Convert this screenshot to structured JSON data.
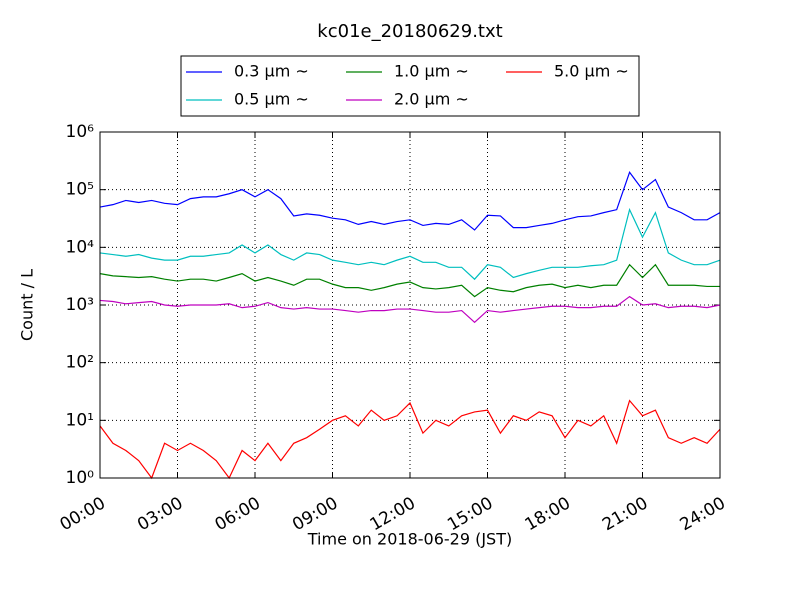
{
  "chart_data": {
    "type": "line",
    "title": "kc01e_20180629.txt",
    "x_label": "Time on 2018-06-29 (JST)",
    "y_label": "Count / L",
    "log_y": true,
    "grid": true,
    "legend": "top-center",
    "x": [
      0,
      0.5,
      1,
      1.5,
      2,
      2.5,
      3,
      3.5,
      4,
      4.5,
      5,
      5.5,
      6,
      6.5,
      7,
      7.5,
      8,
      8.5,
      9,
      9.5,
      10,
      10.5,
      11,
      11.5,
      12,
      12.5,
      13,
      13.5,
      14,
      14.5,
      15,
      15.5,
      16,
      16.5,
      17,
      17.5,
      18,
      18.5,
      19,
      19.5,
      20,
      20.5,
      21,
      21.5,
      22,
      22.5,
      23,
      23.5,
      24
    ],
    "xlim": [
      0,
      24
    ],
    "xticks": [
      {
        "value": 0,
        "label": "00:00"
      },
      {
        "value": 3,
        "label": "03:00"
      },
      {
        "value": 6,
        "label": "06:00"
      },
      {
        "value": 9,
        "label": "09:00"
      },
      {
        "value": 12,
        "label": "12:00"
      },
      {
        "value": 15,
        "label": "15:00"
      },
      {
        "value": 18,
        "label": "18:00"
      },
      {
        "value": 21,
        "label": "21:00"
      },
      {
        "value": 24,
        "label": "24:00"
      }
    ],
    "ylim": [
      1,
      1000000
    ],
    "yticks": [
      {
        "value": 1,
        "label": "10⁰"
      },
      {
        "value": 10,
        "label": "10¹"
      },
      {
        "value": 100,
        "label": "10²"
      },
      {
        "value": 1000,
        "label": "10³"
      },
      {
        "value": 10000,
        "label": "10⁴"
      },
      {
        "value": 100000,
        "label": "10⁵"
      },
      {
        "value": 1000000,
        "label": "10⁶"
      }
    ],
    "series": [
      {
        "name": "0.3 μm ~",
        "color": "#0000ff",
        "values": [
          50000,
          55000,
          65000,
          60000,
          65000,
          58000,
          55000,
          70000,
          75000,
          75000,
          85000,
          100000,
          75000,
          100000,
          70000,
          35000,
          38000,
          36000,
          32000,
          30000,
          25000,
          28000,
          25000,
          28000,
          30000,
          24000,
          26000,
          25000,
          30000,
          20000,
          36000,
          35000,
          22000,
          22000,
          24000,
          26000,
          30000,
          34000,
          35000,
          40000,
          45000,
          200000,
          100000,
          150000,
          50000,
          40000,
          30000,
          30000,
          40000
        ]
      },
      {
        "name": "0.5 μm ~",
        "color": "#00bfbf",
        "values": [
          8000,
          7500,
          7000,
          7500,
          6500,
          6000,
          6000,
          7000,
          7000,
          7500,
          8000,
          11000,
          8000,
          11000,
          7500,
          6000,
          8000,
          7500,
          6000,
          5500,
          5000,
          5500,
          5000,
          6000,
          7000,
          5500,
          5500,
          4500,
          4500,
          2800,
          5000,
          4500,
          3000,
          3500,
          4000,
          4500,
          4500,
          4500,
          4800,
          5000,
          6000,
          45000,
          15000,
          40000,
          8000,
          6000,
          5000,
          5000,
          6000
        ]
      },
      {
        "name": "1.0 μm ~",
        "color": "#008000",
        "values": [
          3500,
          3200,
          3100,
          3000,
          3100,
          2800,
          2600,
          2800,
          2800,
          2600,
          3000,
          3500,
          2600,
          3000,
          2600,
          2200,
          2800,
          2800,
          2300,
          2000,
          2000,
          1800,
          2000,
          2300,
          2500,
          2000,
          1900,
          2000,
          2200,
          1400,
          2000,
          1800,
          1700,
          2000,
          2200,
          2300,
          2000,
          2200,
          2000,
          2200,
          2200,
          5000,
          3000,
          5000,
          2200,
          2200,
          2200,
          2100,
          2100
        ]
      },
      {
        "name": "2.0 μm ~",
        "color": "#bf00bf",
        "values": [
          1200,
          1150,
          1050,
          1100,
          1150,
          1000,
          950,
          1000,
          1000,
          1000,
          1050,
          900,
          950,
          1100,
          900,
          850,
          900,
          850,
          850,
          800,
          750,
          800,
          800,
          850,
          850,
          800,
          750,
          750,
          800,
          500,
          800,
          750,
          800,
          850,
          900,
          950,
          950,
          900,
          900,
          950,
          950,
          1400,
          1000,
          1050,
          900,
          950,
          950,
          900,
          1000
        ]
      },
      {
        "name": "5.0 μm ~",
        "color": "#ff0000",
        "values": [
          8,
          4,
          3,
          2,
          1,
          4,
          3,
          4,
          3,
          2,
          1,
          3,
          2,
          4,
          2,
          4,
          5,
          7,
          10,
          12,
          8,
          15,
          10,
          12,
          20,
          6,
          10,
          8,
          12,
          14,
          15,
          6,
          12,
          10,
          14,
          12,
          5,
          10,
          8,
          12,
          4,
          22,
          12,
          15,
          5,
          4,
          5,
          4,
          7
        ]
      }
    ]
  }
}
